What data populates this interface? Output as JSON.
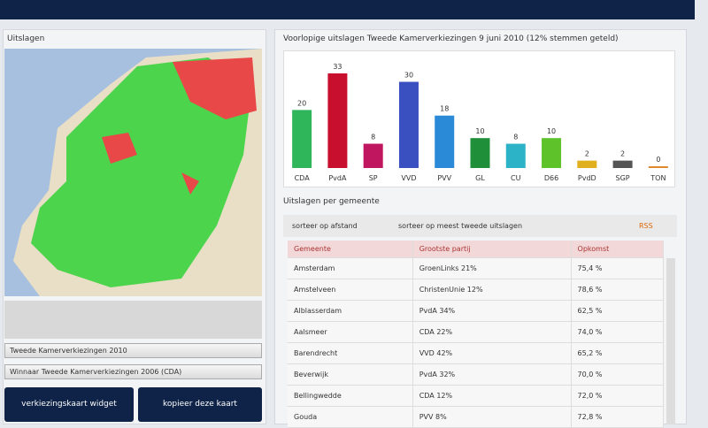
{
  "left_panel": {
    "title": "Uitslagen",
    "selects": [
      "Tweede Kamerverkiezingen 2010",
      "Winnaar Tweede Kamerverkiezingen 2006 (CDA)"
    ],
    "buttons": [
      "verkiezingskaart widget",
      "kopieer deze kaart"
    ]
  },
  "chart": {
    "type": "bar",
    "title": "Voorlopige uitslagen Tweede Kamerverkiezingen 9 juni 2010 (12% stemmen geteld)",
    "categories": [
      "CDA",
      "PvdA",
      "SP",
      "VVD",
      "PVV",
      "GL",
      "CU",
      "D66",
      "PvdD",
      "SGP",
      "TON"
    ],
    "values": [
      20,
      33,
      8,
      30,
      18,
      10,
      8,
      10,
      2,
      2,
      0
    ],
    "colors": [
      "#2fb55a",
      "#c8102e",
      "#c0155f",
      "#3a4fc0",
      "#2a8ad8",
      "#1f8f3a",
      "#2cb3c8",
      "#5ec22a",
      "#e0b020",
      "#555555",
      "#e08a30"
    ]
  },
  "table_section": {
    "title": "Uitslagen per gemeente",
    "filters": [
      "sorteer op afstand",
      "sorteer op meest tweede uitslagen"
    ],
    "rss": "RSS",
    "columns": [
      "Gemeente",
      "Grootste partij",
      "Opkomst"
    ],
    "rows": [
      [
        "Amsterdam",
        "GroenLinks 21%",
        "75,4 %"
      ],
      [
        "Amstelveen",
        "ChristenUnie 12%",
        "78,6 %"
      ],
      [
        "Alblasserdam",
        "PvdA 34%",
        "62,5 %"
      ],
      [
        "Aalsmeer",
        "CDA 22%",
        "74,0 %"
      ],
      [
        "Barendrecht",
        "VVD 42%",
        "65,2 %"
      ],
      [
        "Beverwijk",
        "PvdA 32%",
        "70,0 %"
      ],
      [
        "Bellingwedde",
        "CDA 12%",
        "72,0 %"
      ],
      [
        "Gouda",
        "PVV 8%",
        "72,8 %"
      ]
    ]
  }
}
